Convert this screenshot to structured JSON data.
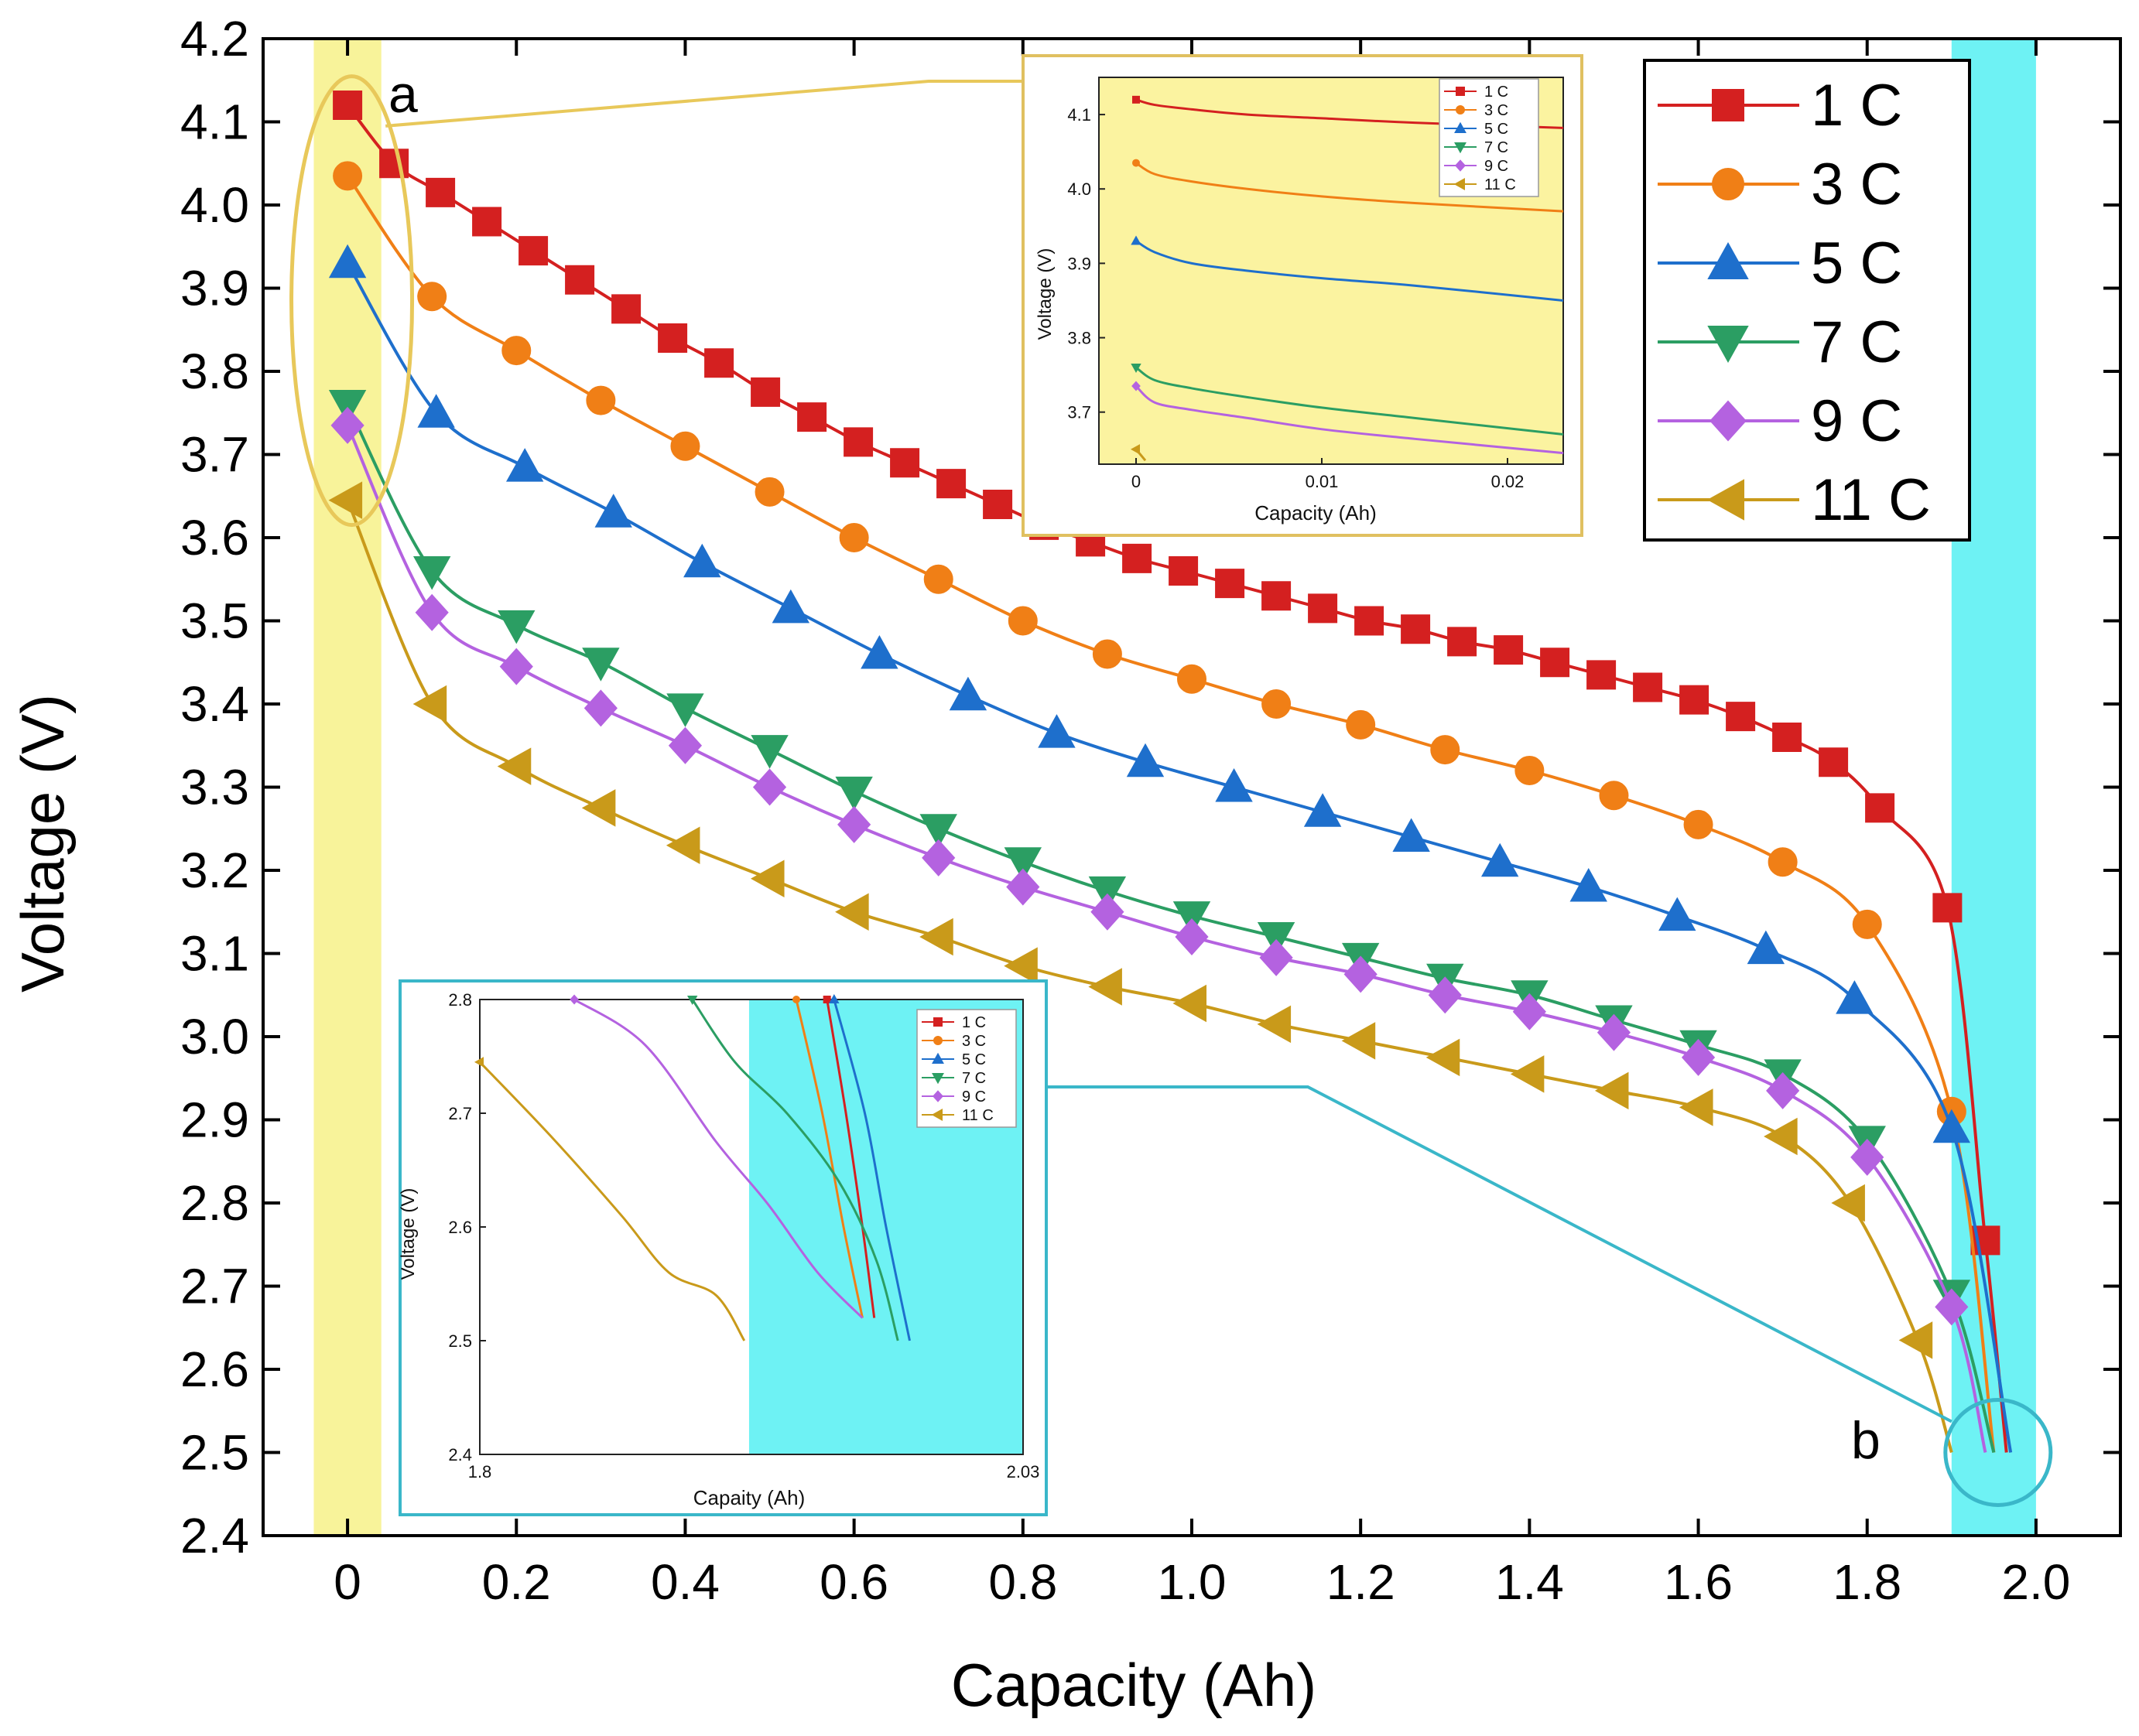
{
  "chart_data": {
    "type": "line",
    "xlabel": "Capacity (Ah)",
    "ylabel": "Voltage (V)",
    "xlim": [
      -0.1,
      2.1
    ],
    "ylim": [
      2.4,
      4.2
    ],
    "x_ticks": [
      0,
      0.2,
      0.4,
      0.6,
      0.8,
      1.0,
      1.2,
      1.4,
      1.6,
      1.8,
      2.0
    ],
    "x_tick_labels": [
      "0",
      "0.2",
      "0.4",
      "0.6",
      "0.8",
      "1.0",
      "1.2",
      "1.4",
      "1.6",
      "1.8",
      "2.0"
    ],
    "y_ticks": [
      2.4,
      2.5,
      2.6,
      2.7,
      2.8,
      2.9,
      3.0,
      3.1,
      3.2,
      3.3,
      3.4,
      3.5,
      3.6,
      3.7,
      3.8,
      3.9,
      4.0,
      4.1,
      4.2
    ],
    "y_tick_labels": [
      "2.4",
      "2.5",
      "2.6",
      "2.7",
      "2.8",
      "2.9",
      "3.0",
      "3.1",
      "3.2",
      "3.3",
      "3.4",
      "3.5",
      "3.6",
      "3.7",
      "3.8",
      "3.9",
      "4.0",
      "4.1",
      "4.2"
    ],
    "highlight_bands": [
      {
        "x_range": [
          -0.04,
          0.04
        ],
        "color": "#f8f39a"
      },
      {
        "x_range": [
          1.9,
          2.0
        ],
        "color": "#6ef2f4"
      }
    ],
    "annotations": [
      {
        "label": "a",
        "x": 0.05,
        "y": 4.125
      },
      {
        "label": "b",
        "x": 1.8,
        "y": 2.51
      }
    ],
    "series": [
      {
        "name": "1 C",
        "color": "#d42020",
        "marker": "square",
        "x": [
          0,
          0.055,
          0.11,
          0.165,
          0.22,
          0.275,
          0.33,
          0.385,
          0.44,
          0.495,
          0.55,
          0.605,
          0.66,
          0.715,
          0.77,
          0.825,
          0.88,
          0.935,
          0.99,
          1.045,
          1.1,
          1.155,
          1.21,
          1.265,
          1.32,
          1.375,
          1.43,
          1.485,
          1.54,
          1.595,
          1.65,
          1.705,
          1.76,
          1.815,
          1.895,
          1.94,
          1.965
        ],
        "y": [
          4.12,
          4.05,
          4.015,
          3.98,
          3.945,
          3.91,
          3.875,
          3.84,
          3.81,
          3.775,
          3.745,
          3.715,
          3.69,
          3.665,
          3.64,
          3.615,
          3.595,
          3.575,
          3.56,
          3.545,
          3.53,
          3.515,
          3.5,
          3.49,
          3.475,
          3.465,
          3.45,
          3.435,
          3.42,
          3.405,
          3.385,
          3.36,
          3.33,
          3.275,
          3.155,
          2.755,
          2.5
        ]
      },
      {
        "name": "3 C",
        "color": "#f07f16",
        "marker": "circle",
        "x": [
          0,
          0.1,
          0.2,
          0.3,
          0.4,
          0.5,
          0.6,
          0.7,
          0.8,
          0.9,
          1.0,
          1.1,
          1.2,
          1.3,
          1.4,
          1.5,
          1.6,
          1.7,
          1.8,
          1.9,
          1.95
        ],
        "y": [
          4.035,
          3.89,
          3.825,
          3.765,
          3.71,
          3.655,
          3.6,
          3.55,
          3.5,
          3.46,
          3.43,
          3.4,
          3.375,
          3.345,
          3.32,
          3.29,
          3.255,
          3.21,
          3.135,
          2.91,
          2.5
        ]
      },
      {
        "name": "5 C",
        "color": "#1e6fcc",
        "marker": "triangle-up",
        "x": [
          0,
          0.105,
          0.21,
          0.315,
          0.42,
          0.525,
          0.63,
          0.735,
          0.84,
          0.945,
          1.05,
          1.155,
          1.26,
          1.365,
          1.47,
          1.575,
          1.68,
          1.785,
          1.9,
          1.97
        ],
        "y": [
          3.93,
          3.75,
          3.685,
          3.63,
          3.57,
          3.515,
          3.46,
          3.41,
          3.365,
          3.33,
          3.3,
          3.27,
          3.24,
          3.21,
          3.18,
          3.145,
          3.105,
          3.045,
          2.89,
          2.5
        ]
      },
      {
        "name": "7 C",
        "color": "#2b9e63",
        "marker": "triangle-down",
        "x": [
          0,
          0.1,
          0.2,
          0.3,
          0.4,
          0.5,
          0.6,
          0.7,
          0.8,
          0.9,
          1.0,
          1.1,
          1.2,
          1.3,
          1.4,
          1.5,
          1.6,
          1.7,
          1.8,
          1.9,
          1.95
        ],
        "y": [
          3.76,
          3.56,
          3.495,
          3.45,
          3.395,
          3.345,
          3.295,
          3.25,
          3.21,
          3.175,
          3.145,
          3.12,
          3.095,
          3.07,
          3.05,
          3.02,
          2.99,
          2.955,
          2.875,
          2.69,
          2.5
        ]
      },
      {
        "name": "9 C",
        "color": "#b462e0",
        "marker": "diamond",
        "x": [
          0,
          0.1,
          0.2,
          0.3,
          0.4,
          0.5,
          0.6,
          0.7,
          0.8,
          0.9,
          1.0,
          1.1,
          1.2,
          1.3,
          1.4,
          1.5,
          1.6,
          1.7,
          1.8,
          1.9,
          1.94
        ],
        "y": [
          3.735,
          3.51,
          3.445,
          3.395,
          3.35,
          3.3,
          3.255,
          3.215,
          3.18,
          3.15,
          3.12,
          3.095,
          3.075,
          3.05,
          3.03,
          3.005,
          2.975,
          2.935,
          2.855,
          2.675,
          2.5
        ]
      },
      {
        "name": "11 C",
        "color": "#c99a1a",
        "marker": "triangle-left",
        "x": [
          0,
          0.1,
          0.2,
          0.3,
          0.4,
          0.5,
          0.6,
          0.7,
          0.8,
          0.9,
          1.0,
          1.1,
          1.2,
          1.3,
          1.4,
          1.5,
          1.6,
          1.7,
          1.78,
          1.86,
          1.9
        ],
        "y": [
          3.645,
          3.4,
          3.325,
          3.275,
          3.23,
          3.19,
          3.15,
          3.12,
          3.085,
          3.06,
          3.04,
          3.015,
          2.995,
          2.975,
          2.955,
          2.935,
          2.915,
          2.88,
          2.8,
          2.635,
          2.5
        ]
      }
    ],
    "insets": [
      {
        "id": "a",
        "xlabel": "Capacity (Ah)",
        "ylabel": "Voltage (V)",
        "xlim": [
          -0.002,
          0.023
        ],
        "ylim": [
          3.63,
          4.15
        ],
        "x_ticks": [
          0,
          0.01,
          0.02
        ],
        "x_tick_labels": [
          "0",
          "0.01",
          "0.02"
        ],
        "y_ticks": [
          3.7,
          3.8,
          3.9,
          4.0,
          4.1
        ],
        "y_tick_labels": [
          "3.7",
          "3.8",
          "3.9",
          "4.0",
          "4.1"
        ],
        "legend": [
          "1 C",
          "3 C",
          "5 C",
          "7 C",
          "9 C",
          "11 C"
        ],
        "series": [
          {
            "name": "1 C",
            "x": [
              0,
              0.001,
              0.003,
              0.006,
              0.01,
              0.015,
              0.023
            ],
            "y": [
              4.12,
              4.113,
              4.107,
              4.1,
              4.095,
              4.089,
              4.082
            ]
          },
          {
            "name": "3 C",
            "x": [
              0,
              0.001,
              0.003,
              0.006,
              0.01,
              0.015,
              0.023
            ],
            "y": [
              4.035,
              4.02,
              4.01,
              4.0,
              3.99,
              3.981,
              3.97
            ]
          },
          {
            "name": "5 C",
            "x": [
              0,
              0.001,
              0.003,
              0.006,
              0.01,
              0.015,
              0.023
            ],
            "y": [
              3.93,
              3.915,
              3.9,
              3.89,
              3.88,
              3.87,
              3.85
            ]
          },
          {
            "name": "7 C",
            "x": [
              0,
              0.001,
              0.003,
              0.006,
              0.01,
              0.015,
              0.023
            ],
            "y": [
              3.76,
              3.743,
              3.732,
              3.72,
              3.706,
              3.692,
              3.67
            ]
          },
          {
            "name": "9 C",
            "x": [
              0,
              0.001,
              0.003,
              0.006,
              0.01,
              0.015,
              0.023
            ],
            "y": [
              3.735,
              3.713,
              3.703,
              3.692,
              3.677,
              3.664,
              3.645
            ]
          },
          {
            "name": "11 C",
            "x": [
              0,
              0.0005
            ],
            "y": [
              3.65,
              3.635
            ]
          }
        ]
      },
      {
        "id": "b",
        "xlabel": "Capaity (Ah)",
        "ylabel": "Voltage (V)",
        "xlim": [
          1.8,
          2.03
        ],
        "ylim": [
          2.4,
          2.8
        ],
        "x_ticks": [
          1.8,
          2.03
        ],
        "x_tick_labels": [
          "1.8",
          "2.03"
        ],
        "y_ticks": [
          2.4,
          2.5,
          2.6,
          2.7,
          2.8
        ],
        "y_tick_labels": [
          "2.4",
          "2.5",
          "2.6",
          "2.7",
          "2.8"
        ],
        "legend": [
          "1 C",
          "3 C",
          "5 C",
          "7 C",
          "9 C",
          "11 C"
        ],
        "series": [
          {
            "name": "1 C",
            "x": [
              1.947,
              1.955,
              1.962,
              1.967
            ],
            "y": [
              2.8,
              2.7,
              2.6,
              2.52
            ]
          },
          {
            "name": "3 C",
            "x": [
              1.934,
              1.945,
              1.954,
              1.962
            ],
            "y": [
              2.8,
              2.7,
              2.6,
              2.52
            ]
          },
          {
            "name": "5 C",
            "x": [
              1.95,
              1.963,
              1.972,
              1.982
            ],
            "y": [
              2.8,
              2.7,
              2.6,
              2.5
            ]
          },
          {
            "name": "7 C",
            "x": [
              1.89,
              1.908,
              1.93,
              1.952,
              1.968,
              1.977
            ],
            "y": [
              2.8,
              2.745,
              2.7,
              2.64,
              2.57,
              2.5
            ]
          },
          {
            "name": "9 C",
            "x": [
              1.84,
              1.87,
              1.9,
              1.922,
              1.943,
              1.962
            ],
            "y": [
              2.8,
              2.76,
              2.675,
              2.62,
              2.56,
              2.52
            ]
          },
          {
            "name": "11 C",
            "x": [
              1.8,
              1.83,
              1.86,
              1.88,
              1.9,
              1.912
            ],
            "y": [
              2.745,
              2.68,
              2.61,
              2.56,
              2.54,
              2.5
            ]
          }
        ]
      }
    ]
  }
}
